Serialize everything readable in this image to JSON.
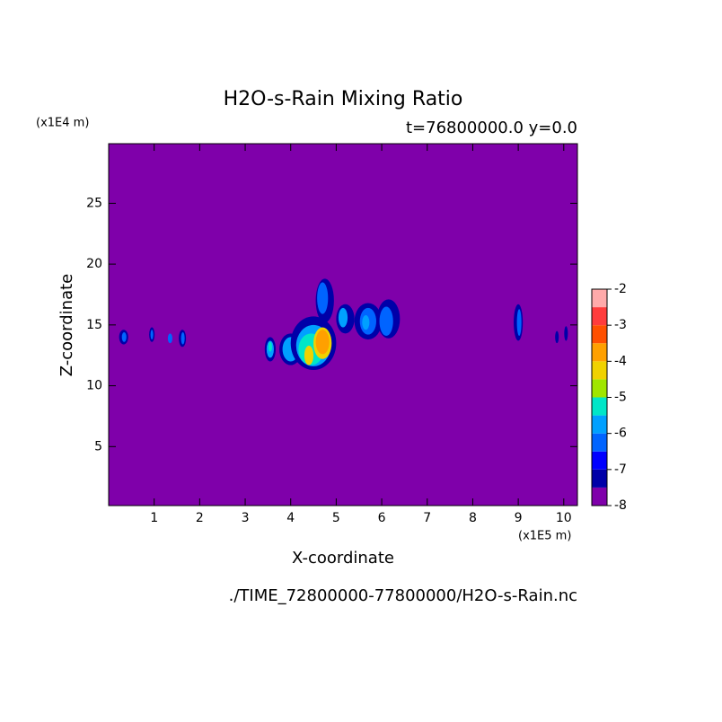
{
  "chart_data": {
    "type": "contour",
    "title": "H2O-s-Rain Mixing Ratio",
    "subtitle": "t=76800000.0 y=0.0",
    "x_label": "X-coordinate",
    "y_label": "Z-coordinate",
    "x_unit": "(x1E5 m)",
    "y_unit": "(x1E4 m)",
    "footer": "./TIME_72800000-77800000/H2O-s-Rain.nc",
    "xlim": [
      0,
      10.3
    ],
    "ylim": [
      0.15,
      29.9
    ],
    "xticks": [
      1,
      2,
      3,
      4,
      5,
      6,
      7,
      8,
      9,
      10
    ],
    "yticks": [
      5,
      10,
      15,
      20,
      25
    ],
    "levels": [
      -8,
      -7.5,
      -7,
      -6.5,
      -6,
      -5.5,
      -5,
      -4.5,
      -4,
      -3.5,
      -3,
      -2.5,
      -2
    ],
    "colors": [
      "#7f00aa",
      "#0000a8",
      "#0000ff",
      "#0064ff",
      "#00a0ff",
      "#00e6c8",
      "#a0e600",
      "#f0d200",
      "#ffa000",
      "#ff5000",
      "#ff3c3c",
      "#ffaaaa"
    ],
    "cticks": [
      -2,
      -3,
      -4,
      -5,
      -6,
      -7,
      -8
    ],
    "field_level": -8,
    "cells": [
      [
        0.33,
        14.0,
        0.1,
        0.6,
        -7.2
      ],
      [
        0.34,
        14.0,
        0.05,
        0.4,
        -6.2
      ],
      [
        0.95,
        14.2,
        0.06,
        0.6,
        -7.2
      ],
      [
        0.95,
        14.2,
        0.03,
        0.4,
        -6.2
      ],
      [
        1.35,
        13.9,
        0.05,
        0.4,
        -6.2
      ],
      [
        1.62,
        13.9,
        0.08,
        0.7,
        -7.2
      ],
      [
        1.63,
        13.9,
        0.04,
        0.5,
        -6.2
      ],
      [
        3.55,
        13.0,
        0.12,
        1.0,
        -7.2
      ],
      [
        3.55,
        13.0,
        0.08,
        0.7,
        -5.8
      ],
      [
        3.55,
        13.2,
        0.04,
        0.4,
        -5.2
      ],
      [
        4.0,
        13.0,
        0.25,
        1.3,
        -7.2
      ],
      [
        4.0,
        13.0,
        0.18,
        1.0,
        -5.8
      ],
      [
        4.5,
        13.5,
        0.5,
        2.2,
        -7.2
      ],
      [
        4.5,
        13.3,
        0.38,
        1.7,
        -5.8
      ],
      [
        4.45,
        13.0,
        0.28,
        1.3,
        -5.2
      ],
      [
        4.4,
        12.5,
        0.1,
        0.8,
        -4.2
      ],
      [
        4.7,
        13.5,
        0.2,
        1.3,
        -4.2
      ],
      [
        4.7,
        13.6,
        0.15,
        1.0,
        -3.8
      ],
      [
        4.75,
        17.0,
        0.2,
        1.8,
        -7.2
      ],
      [
        4.7,
        17.2,
        0.12,
        1.3,
        -6.2
      ],
      [
        5.2,
        15.5,
        0.2,
        1.2,
        -7.2
      ],
      [
        5.15,
        15.6,
        0.1,
        0.8,
        -5.8
      ],
      [
        5.7,
        15.3,
        0.3,
        1.5,
        -7.2
      ],
      [
        5.7,
        15.3,
        0.18,
        1.1,
        -6.2
      ],
      [
        5.65,
        15.2,
        0.08,
        0.6,
        -5.8
      ],
      [
        6.15,
        15.5,
        0.25,
        1.6,
        -7.2
      ],
      [
        6.1,
        15.3,
        0.15,
        1.2,
        -6.2
      ],
      [
        9.0,
        15.2,
        0.1,
        1.5,
        -7.2
      ],
      [
        9.02,
        15.2,
        0.05,
        1.1,
        -6.2
      ],
      [
        9.85,
        14.0,
        0.04,
        0.5,
        -7.2
      ],
      [
        10.05,
        14.3,
        0.04,
        0.6,
        -7.2
      ]
    ]
  }
}
